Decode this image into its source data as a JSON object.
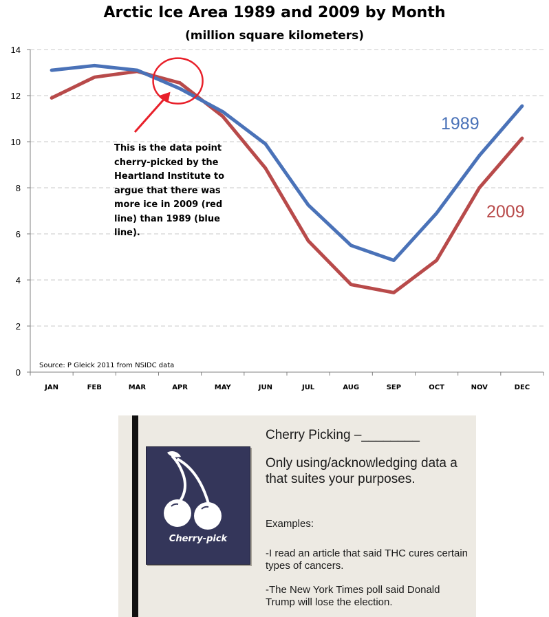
{
  "chart_data": {
    "type": "line",
    "title": "Arctic Ice Area 1989 and 2009 by Month",
    "subtitle": "(million square kilometers)",
    "categories": [
      "JAN",
      "FEB",
      "MAR",
      "APR",
      "MAY",
      "JUN",
      "JUL",
      "AUG",
      "SEP",
      "OCT",
      "NOV",
      "DEC"
    ],
    "series": [
      {
        "name": "1989",
        "color": "#4a72b8",
        "values": [
          13.1,
          13.3,
          13.1,
          12.3,
          11.3,
          9.9,
          7.25,
          5.5,
          4.85,
          6.9,
          9.4,
          11.55
        ]
      },
      {
        "name": "2009",
        "color": "#b84a4a",
        "values": [
          11.9,
          12.8,
          13.05,
          12.55,
          11.1,
          8.85,
          5.7,
          3.8,
          3.45,
          4.85,
          8.0,
          10.15
        ]
      }
    ],
    "ylim": [
      0,
      14
    ],
    "yticks": [
      0,
      2,
      4,
      6,
      8,
      10,
      12,
      14
    ],
    "grid": true,
    "source": "Source: P Gleick 2011 from NSIDC data",
    "annotation": "This is the data point cherry-picked by the Heartland Institute to argue that there was more ice in 2009 (red line) than 1989 (blue line).",
    "highlight_category": "APR"
  },
  "slide": {
    "heading": "Cherry Picking –________",
    "definition": "Only using/acknowledging data a that suites your purposes.",
    "examples_label": "Examples:",
    "example_1": "-I read an article that said THC cures certain types of cancers.",
    "example_2": "-The New York Times poll said Donald Trump will lose the election.",
    "image_caption": "Cherry-pick",
    "colors": {
      "image_bg": "#34365a",
      "slide_bg": "#edeae3",
      "bar": "#111111"
    }
  }
}
